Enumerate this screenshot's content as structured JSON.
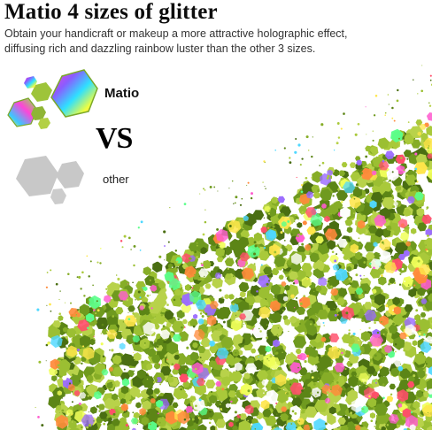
{
  "title": "Matio 4 sizes of glitter",
  "subtitle_line1": "Obtain your handicraft or makeup a more attractive holographic effect,",
  "subtitle_line2": "diffusing rich and dazzling rainbow luster than the other 3 sizes.",
  "comparison": {
    "matio_label": "Matio",
    "vs_label": "VS",
    "other_label": "other"
  },
  "colors": {
    "glitter_base": "#6f9a1f",
    "glitter_light": "#a9c93a",
    "glitter_dark": "#4a6e12",
    "other_gray": "#c8c8c8"
  },
  "icons": {
    "matio_hexagons": "holographic-hexagons-icon",
    "other_hexagons": "gray-hexagons-icon"
  }
}
